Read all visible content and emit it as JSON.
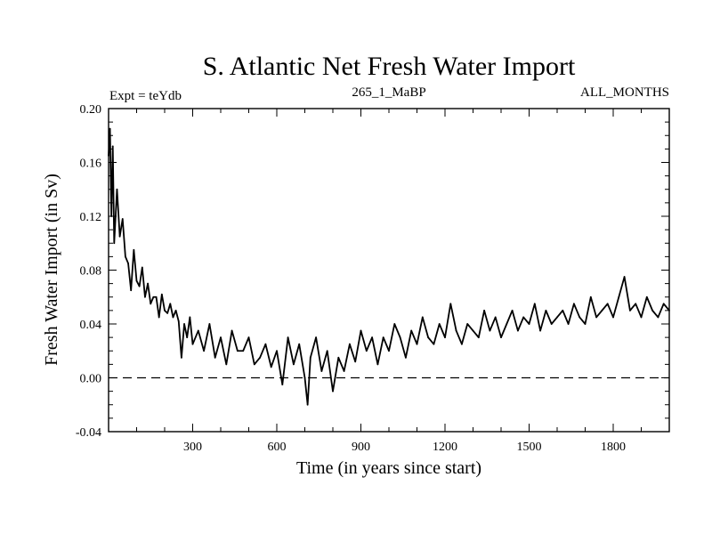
{
  "chart_data": {
    "type": "line",
    "title": "S. Atlantic Net Fresh Water Import",
    "subtitle_left": "Expt = teYdb",
    "subtitle_center": "265_1_MaBP",
    "subtitle_right": "ALL_MONTHS",
    "xlabel": "Time (in years since start)",
    "ylabel": "Fresh Water Import (in Sv)",
    "xlim": [
      0,
      2000
    ],
    "ylim": [
      -0.04,
      0.2
    ],
    "x_ticks": [
      300,
      600,
      900,
      1200,
      1500,
      1800
    ],
    "x_tick_labels": [
      "300",
      "600",
      "900",
      "1200",
      "1500",
      "1800"
    ],
    "y_ticks": [
      -0.04,
      0.0,
      0.04,
      0.08,
      0.12,
      0.16,
      0.2
    ],
    "y_tick_labels": [
      "-0.04",
      "0.00",
      "0.04",
      "0.08",
      "0.12",
      "0.16",
      "0.20"
    ],
    "reference_line": {
      "y": 0.0,
      "style": "dashed"
    },
    "series": [
      {
        "name": "Fresh Water Import",
        "x": [
          0,
          5,
          10,
          15,
          20,
          30,
          40,
          50,
          60,
          70,
          80,
          90,
          100,
          110,
          120,
          130,
          140,
          150,
          160,
          170,
          180,
          190,
          200,
          210,
          220,
          230,
          240,
          250,
          260,
          270,
          280,
          290,
          300,
          320,
          340,
          360,
          380,
          400,
          420,
          440,
          460,
          480,
          500,
          520,
          540,
          560,
          580,
          600,
          620,
          640,
          660,
          680,
          700,
          710,
          720,
          740,
          760,
          780,
          800,
          820,
          840,
          860,
          880,
          900,
          920,
          940,
          960,
          980,
          1000,
          1020,
          1040,
          1060,
          1080,
          1100,
          1120,
          1140,
          1160,
          1180,
          1200,
          1220,
          1240,
          1260,
          1280,
          1300,
          1320,
          1340,
          1360,
          1380,
          1400,
          1420,
          1440,
          1460,
          1480,
          1500,
          1520,
          1540,
          1560,
          1580,
          1600,
          1620,
          1640,
          1660,
          1680,
          1700,
          1720,
          1740,
          1760,
          1780,
          1800,
          1820,
          1840,
          1860,
          1880,
          1900,
          1920,
          1940,
          1960,
          1980,
          2000
        ],
        "values": [
          0.165,
          0.185,
          0.12,
          0.172,
          0.1,
          0.14,
          0.105,
          0.118,
          0.09,
          0.085,
          0.065,
          0.095,
          0.072,
          0.068,
          0.082,
          0.06,
          0.07,
          0.055,
          0.06,
          0.06,
          0.045,
          0.062,
          0.05,
          0.048,
          0.055,
          0.045,
          0.05,
          0.042,
          0.015,
          0.04,
          0.03,
          0.045,
          0.025,
          0.035,
          0.02,
          0.04,
          0.015,
          0.03,
          0.01,
          0.035,
          0.02,
          0.02,
          0.03,
          0.01,
          0.015,
          0.025,
          0.008,
          0.02,
          -0.005,
          0.03,
          0.01,
          0.025,
          0.0,
          -0.02,
          0.015,
          0.03,
          0.005,
          0.02,
          -0.01,
          0.015,
          0.005,
          0.025,
          0.012,
          0.035,
          0.02,
          0.03,
          0.01,
          0.03,
          0.02,
          0.04,
          0.03,
          0.015,
          0.035,
          0.025,
          0.045,
          0.03,
          0.025,
          0.04,
          0.03,
          0.055,
          0.035,
          0.025,
          0.04,
          0.035,
          0.03,
          0.05,
          0.035,
          0.045,
          0.03,
          0.04,
          0.05,
          0.035,
          0.045,
          0.04,
          0.055,
          0.035,
          0.05,
          0.04,
          0.045,
          0.05,
          0.04,
          0.055,
          0.045,
          0.04,
          0.06,
          0.045,
          0.05,
          0.055,
          0.045,
          0.06,
          0.075,
          0.05,
          0.055,
          0.045,
          0.06,
          0.05,
          0.045,
          0.055,
          0.05
        ]
      }
    ]
  }
}
